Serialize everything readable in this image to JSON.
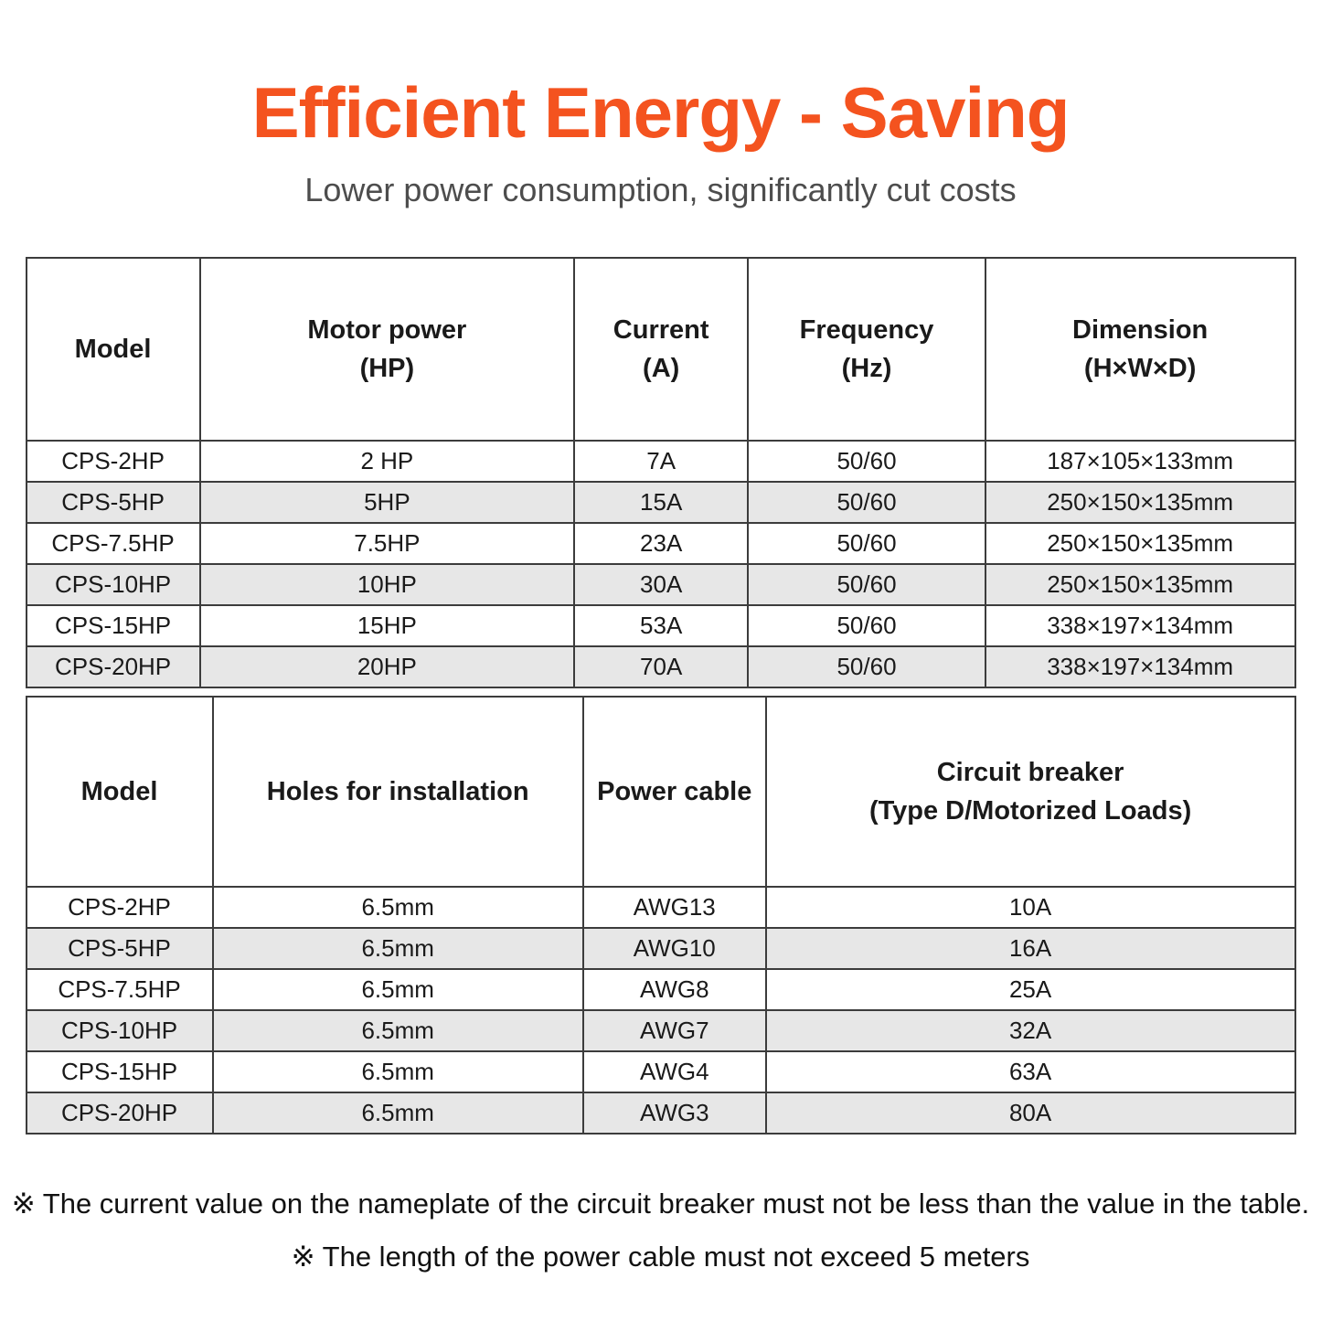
{
  "page": {
    "title": "Efficient Energy - Saving",
    "subtitle": "Lower power consumption, significantly cut costs"
  },
  "colors": {
    "accent": "#F4531F",
    "subtitle_gray": "#4d4d4d",
    "row_shade": "#e7e7e7",
    "table_border": "#3c3c3c"
  },
  "table1": {
    "headers": [
      "Model",
      "Motor power\n(HP)",
      "Current\n(A)",
      "Frequency\n(Hz)",
      "Dimension\n(H×W×D)"
    ],
    "rows": [
      [
        "CPS-2HP",
        "2 HP",
        "7A",
        "50/60",
        "187×105×133mm"
      ],
      [
        "CPS-5HP",
        "5HP",
        "15A",
        "50/60",
        "250×150×135mm"
      ],
      [
        "CPS-7.5HP",
        "7.5HP",
        "23A",
        "50/60",
        "250×150×135mm"
      ],
      [
        "CPS-10HP",
        "10HP",
        "30A",
        "50/60",
        "250×150×135mm"
      ],
      [
        "CPS-15HP",
        "15HP",
        "53A",
        "50/60",
        "338×197×134mm"
      ],
      [
        "CPS-20HP",
        "20HP",
        "70A",
        "50/60",
        "338×197×134mm"
      ]
    ]
  },
  "table2": {
    "headers": [
      "Model",
      "Holes for installation",
      "Power cable",
      "Circuit breaker\n(Type D/Motorized Loads)"
    ],
    "rows": [
      [
        "CPS-2HP",
        "6.5mm",
        "AWG13",
        "10A"
      ],
      [
        "CPS-5HP",
        "6.5mm",
        "AWG10",
        "16A"
      ],
      [
        "CPS-7.5HP",
        "6.5mm",
        "AWG8",
        "25A"
      ],
      [
        "CPS-10HP",
        "6.5mm",
        "AWG7",
        "32A"
      ],
      [
        "CPS-15HP",
        "6.5mm",
        "AWG4",
        "63A"
      ],
      [
        "CPS-20HP",
        "6.5mm",
        "AWG3",
        "80A"
      ]
    ]
  },
  "footnotes": [
    "※ The current value on the nameplate of the circuit breaker must not be less than the value in the table.",
    "※ The length of the power cable must not exceed 5 meters"
  ]
}
